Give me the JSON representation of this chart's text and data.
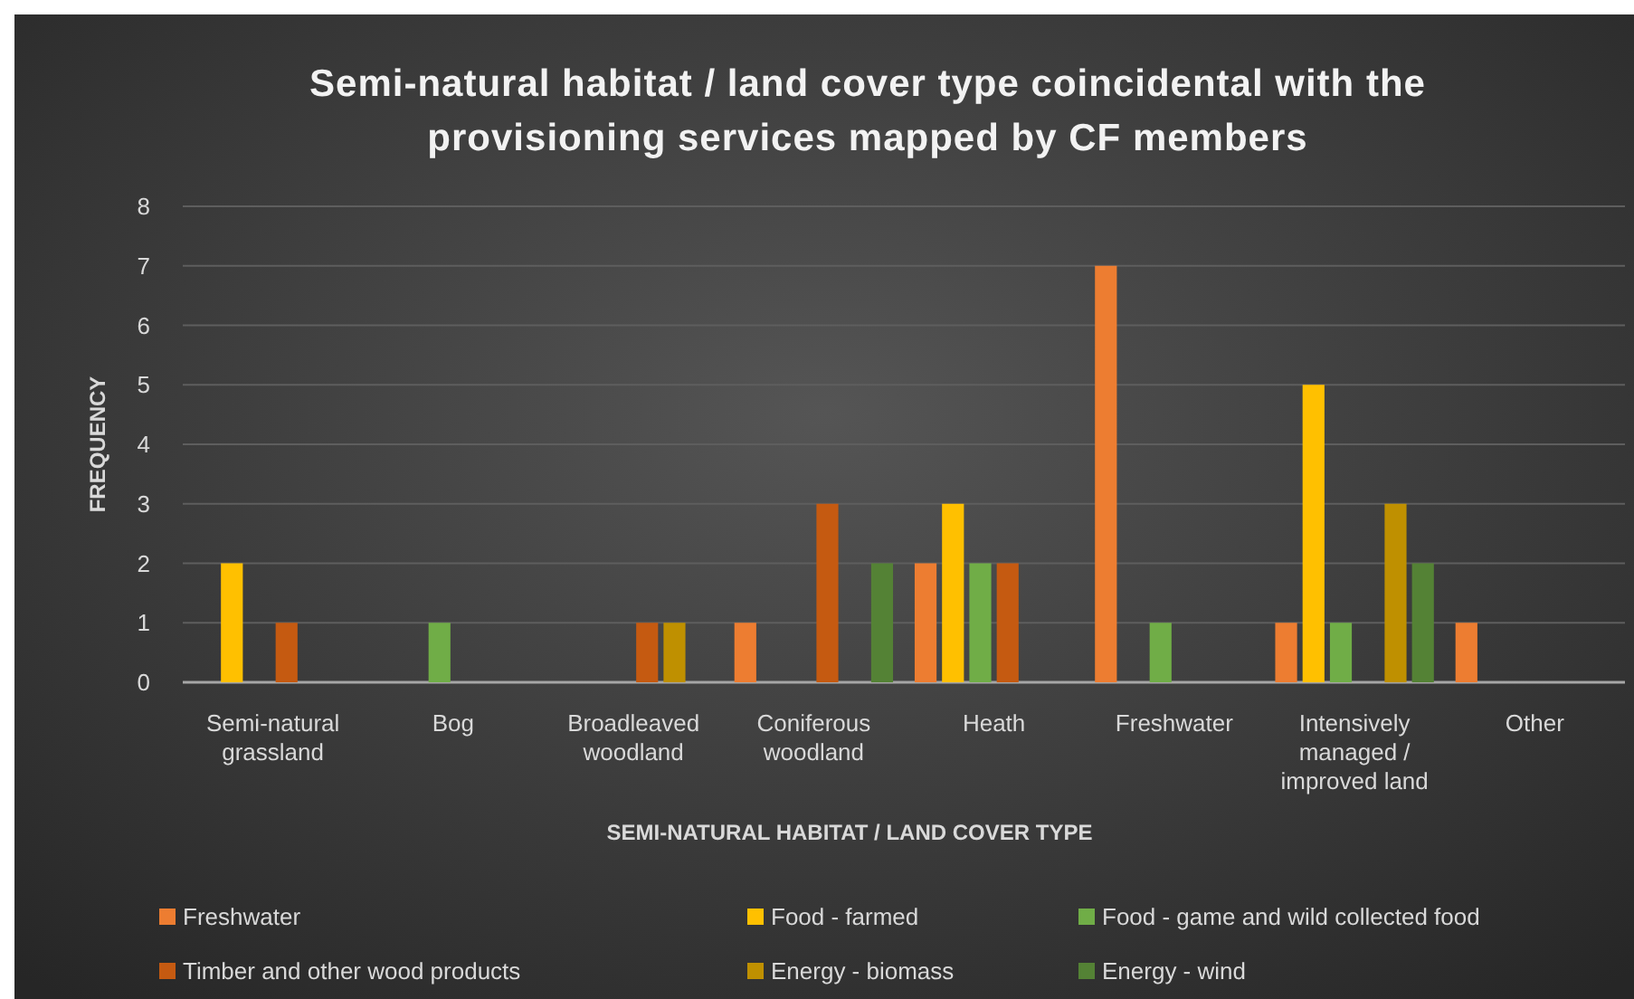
{
  "chart_data": {
    "type": "bar",
    "title": "Semi-natural habitat / land cover type coincidental with the provisioning services mapped by CF members",
    "xlabel": "SEMI-NATURAL HABITAT / LAND COVER TYPE",
    "ylabel": "FREQUENCY",
    "categories": [
      "Semi-natural grassland",
      "Bog",
      "Broadleaved woodland",
      "Coniferous woodland",
      "Heath",
      "Freshwater",
      "Intensively managed / improved land",
      "Other"
    ],
    "series": [
      {
        "name": "Freshwater",
        "color": "#ed7d31",
        "values": [
          0,
          0,
          0,
          1,
          2,
          7,
          1,
          1
        ]
      },
      {
        "name": "Food - farmed",
        "color": "#ffc000",
        "values": [
          2,
          0,
          0,
          0,
          3,
          0,
          5,
          0
        ]
      },
      {
        "name": "Food - game and wild collected food",
        "color": "#70ad47",
        "values": [
          0,
          1,
          0,
          0,
          2,
          1,
          1,
          0
        ]
      },
      {
        "name": "Timber and other wood products",
        "color": "#c55a11",
        "values": [
          1,
          0,
          1,
          3,
          2,
          0,
          0,
          0
        ]
      },
      {
        "name": "Energy - biomass",
        "color": "#bf9000",
        "values": [
          0,
          0,
          1,
          0,
          0,
          0,
          3,
          0
        ]
      },
      {
        "name": "Energy - wind",
        "color": "#548235",
        "values": [
          0,
          0,
          0,
          2,
          0,
          0,
          2,
          0
        ]
      }
    ],
    "ylim": [
      0,
      8
    ],
    "yticks": [
      0,
      1,
      2,
      3,
      4,
      5,
      6,
      7,
      8
    ],
    "grid": "y",
    "legend": "bottom"
  }
}
